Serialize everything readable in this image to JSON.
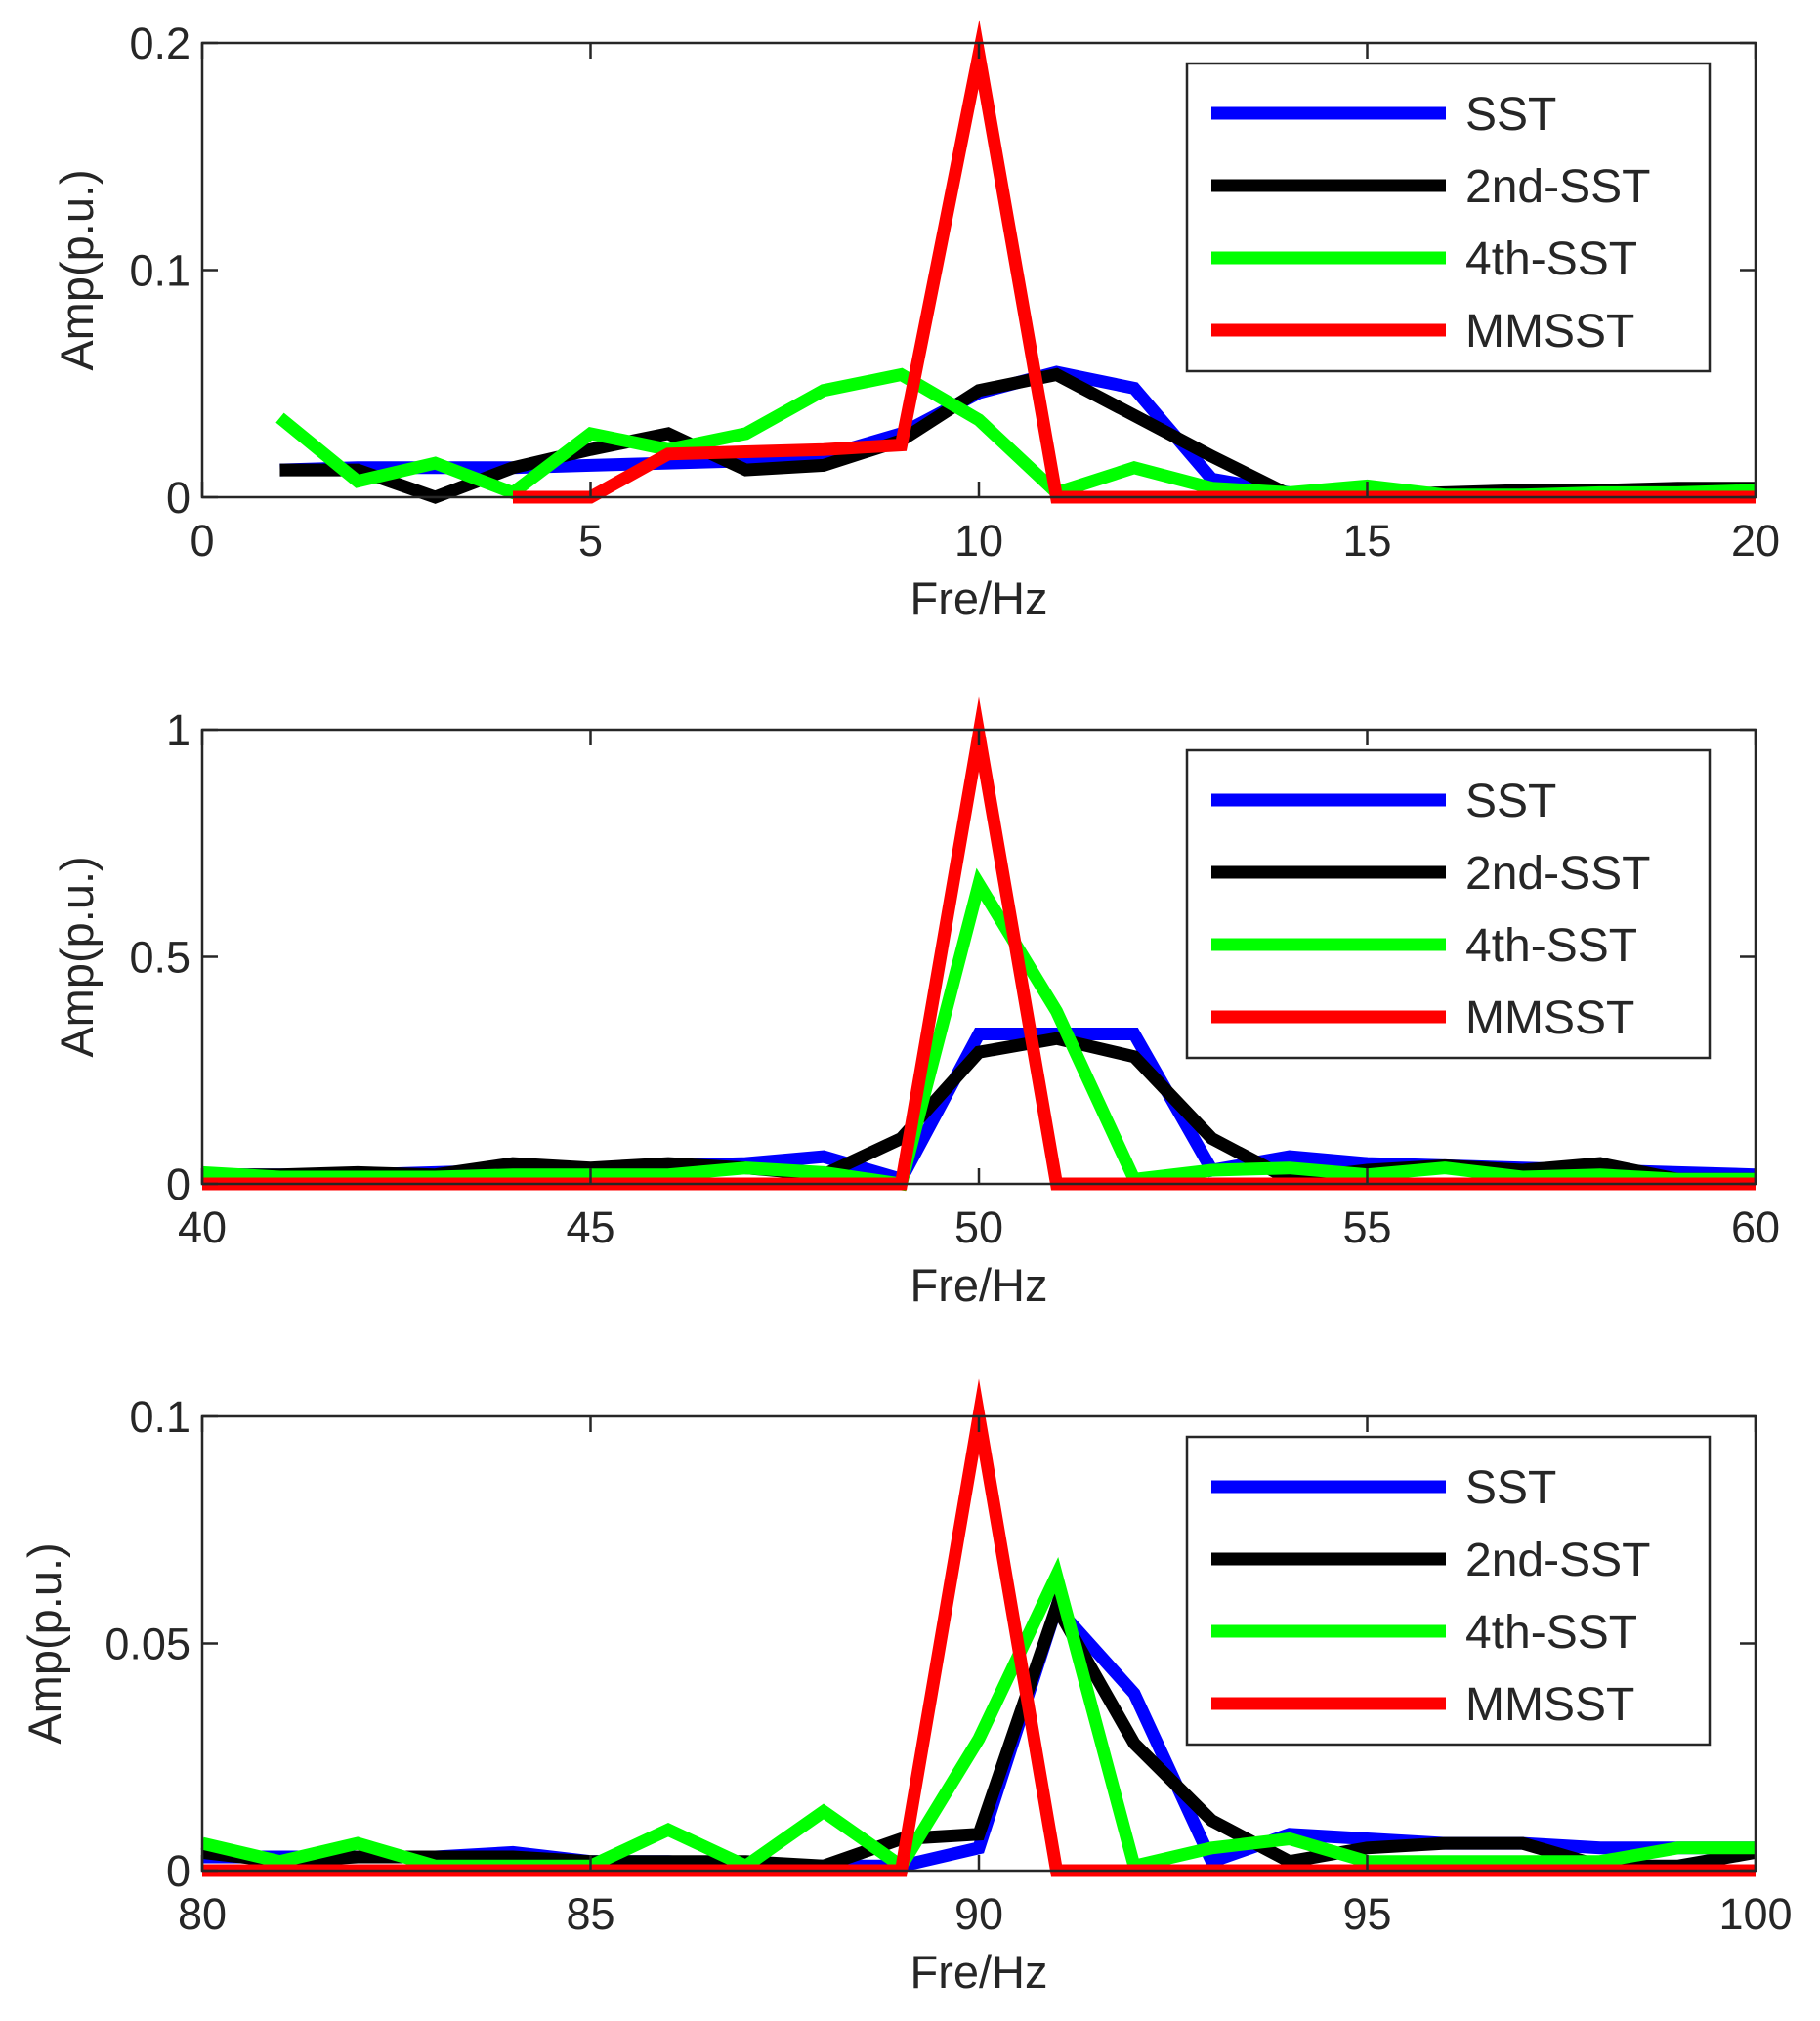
{
  "chart_data": [
    {
      "type": "line",
      "title": "",
      "xlabel": "Fre/Hz",
      "ylabel": "Amp(p.u.)",
      "xlim": [
        0,
        20
      ],
      "ylim": [
        0,
        0.2
      ],
      "xticks": [
        0,
        5,
        10,
        15,
        20
      ],
      "xtick_labels": [
        "0",
        "5",
        "10",
        "15",
        "20"
      ],
      "yticks": [
        0,
        0.1,
        0.2
      ],
      "ytick_labels": [
        "0",
        "0.1",
        "0.2"
      ],
      "legend_position": "top-right",
      "series": [
        {
          "name": "SST",
          "color": "#0000ff",
          "x": [
            1,
            2,
            3,
            4,
            5,
            6,
            7,
            8,
            9,
            10,
            11,
            12,
            13,
            14,
            15,
            16,
            17,
            18,
            19,
            20
          ],
          "y": [
            0.012,
            0.013,
            0.013,
            0.013,
            0.014,
            0.015,
            0.016,
            0.018,
            0.028,
            0.046,
            0.055,
            0.048,
            0.008,
            0.002,
            0.001,
            0.001,
            0.002,
            0.002,
            0.003,
            0.003
          ]
        },
        {
          "name": "2nd-SST",
          "color": "#000000",
          "x": [
            1,
            2,
            3,
            4,
            5,
            6,
            7,
            8,
            9,
            10,
            11,
            12,
            13,
            14,
            15,
            16,
            17,
            18,
            19,
            20
          ],
          "y": [
            0.012,
            0.012,
            0.0,
            0.013,
            0.021,
            0.028,
            0.012,
            0.014,
            0.025,
            0.047,
            0.054,
            0.036,
            0.018,
            0.001,
            0.001,
            0.002,
            0.003,
            0.003,
            0.004,
            0.004
          ]
        },
        {
          "name": "4th-SST",
          "color": "#00ff00",
          "x": [
            1,
            2,
            3,
            4,
            5,
            6,
            7,
            8,
            9,
            10,
            11,
            12,
            13,
            14,
            15,
            16,
            17,
            18,
            19,
            20
          ],
          "y": [
            0.035,
            0.007,
            0.015,
            0.002,
            0.028,
            0.021,
            0.028,
            0.047,
            0.054,
            0.034,
            0.002,
            0.013,
            0.004,
            0.002,
            0.005,
            0.001,
            0.001,
            0.002,
            0.002,
            0.003
          ]
        },
        {
          "name": "MMSST",
          "color": "#ff0000",
          "x": [
            4,
            5,
            6,
            7,
            8,
            9,
            10,
            11,
            12,
            13,
            14,
            15,
            16,
            17,
            18,
            19,
            20
          ],
          "y": [
            0.0,
            0.0,
            0.019,
            0.02,
            0.021,
            0.023,
            0.195,
            0.0,
            0.0,
            0.0,
            0.0,
            0.0,
            0.0,
            0.0,
            0.0,
            0.0,
            0.0
          ]
        }
      ]
    },
    {
      "type": "line",
      "title": "",
      "xlabel": "Fre/Hz",
      "ylabel": "Amp(p.u.)",
      "xlim": [
        40,
        60
      ],
      "ylim": [
        0,
        1
      ],
      "xticks": [
        40,
        45,
        50,
        55,
        60
      ],
      "xtick_labels": [
        "40",
        "45",
        "50",
        "55",
        "60"
      ],
      "yticks": [
        0,
        0.5,
        1
      ],
      "ytick_labels": [
        "0",
        "0.5",
        "1"
      ],
      "legend_position": "top-right",
      "series": [
        {
          "name": "SST",
          "color": "#0000ff",
          "x": [
            40,
            41,
            42,
            43,
            44,
            45,
            46,
            47,
            48,
            49,
            50,
            51,
            52,
            53,
            54,
            55,
            56,
            57,
            58,
            59,
            60
          ],
          "y": [
            0.02,
            0.02,
            0.02,
            0.025,
            0.03,
            0.03,
            0.04,
            0.045,
            0.06,
            0.01,
            0.33,
            0.33,
            0.33,
            0.03,
            0.06,
            0.045,
            0.04,
            0.035,
            0.03,
            0.025,
            0.02
          ]
        },
        {
          "name": "2nd-SST",
          "color": "#000000",
          "x": [
            40,
            41,
            42,
            43,
            44,
            45,
            46,
            47,
            48,
            49,
            50,
            51,
            52,
            53,
            54,
            55,
            56,
            57,
            58,
            59,
            60
          ],
          "y": [
            0.02,
            0.02,
            0.025,
            0.02,
            0.045,
            0.035,
            0.045,
            0.035,
            0.02,
            0.1,
            0.29,
            0.32,
            0.28,
            0.1,
            0.01,
            0.03,
            0.04,
            0.03,
            0.045,
            0.01,
            0.01
          ]
        },
        {
          "name": "4th-SST",
          "color": "#00ff00",
          "x": [
            40,
            41,
            42,
            43,
            44,
            45,
            46,
            47,
            48,
            49,
            50,
            51,
            52,
            53,
            54,
            55,
            56,
            57,
            58,
            59,
            60
          ],
          "y": [
            0.025,
            0.015,
            0.015,
            0.015,
            0.02,
            0.02,
            0.02,
            0.035,
            0.025,
            0.0,
            0.66,
            0.38,
            0.01,
            0.03,
            0.035,
            0.02,
            0.035,
            0.015,
            0.02,
            0.01,
            0.01
          ]
        },
        {
          "name": "MMSST",
          "color": "#ff0000",
          "x": [
            40,
            41,
            42,
            43,
            44,
            45,
            46,
            47,
            48,
            49,
            50,
            51,
            52,
            53,
            54,
            55,
            56,
            57,
            58,
            59,
            60
          ],
          "y": [
            0,
            0,
            0,
            0,
            0,
            0,
            0,
            0,
            0,
            0,
            0.99,
            0,
            0,
            0,
            0,
            0,
            0,
            0,
            0,
            0,
            0
          ]
        }
      ]
    },
    {
      "type": "line",
      "title": "",
      "xlabel": "Fre/Hz",
      "ylabel": "Amp(p.u.)",
      "xlim": [
        80,
        100
      ],
      "ylim": [
        0,
        0.1
      ],
      "xticks": [
        80,
        85,
        90,
        95,
        100
      ],
      "xtick_labels": [
        "80",
        "85",
        "90",
        "95",
        "100"
      ],
      "yticks": [
        0,
        0.05,
        0.1
      ],
      "ytick_labels": [
        "0",
        "0.05",
        "0.1"
      ],
      "legend_position": "top-right",
      "series": [
        {
          "name": "SST",
          "color": "#0000ff",
          "x": [
            80,
            81,
            82,
            83,
            84,
            85,
            86,
            87,
            88,
            89,
            90,
            91,
            92,
            93,
            94,
            95,
            96,
            97,
            98,
            99,
            100
          ],
          "y": [
            0.003,
            0.003,
            0.003,
            0.003,
            0.004,
            0.002,
            0.002,
            0.001,
            0.001,
            0.001,
            0.005,
            0.058,
            0.039,
            0.002,
            0.008,
            0.007,
            0.006,
            0.006,
            0.005,
            0.005,
            0.005
          ]
        },
        {
          "name": "2nd-SST",
          "color": "#000000",
          "x": [
            80,
            81,
            82,
            83,
            84,
            85,
            86,
            87,
            88,
            89,
            90,
            91,
            92,
            93,
            94,
            95,
            96,
            97,
            98,
            99,
            100
          ],
          "y": [
            0.004,
            0.002,
            0.003,
            0.003,
            0.003,
            0.002,
            0.002,
            0.002,
            0.001,
            0.007,
            0.008,
            0.058,
            0.028,
            0.011,
            0.002,
            0.005,
            0.006,
            0.006,
            0.001,
            0.001,
            0.004
          ]
        },
        {
          "name": "4th-SST",
          "color": "#00ff00",
          "x": [
            80,
            81,
            82,
            83,
            84,
            85,
            86,
            87,
            88,
            89,
            90,
            91,
            92,
            93,
            94,
            95,
            96,
            97,
            98,
            99,
            100
          ],
          "y": [
            0.006,
            0.002,
            0.006,
            0.001,
            0.001,
            0.001,
            0.009,
            0.001,
            0.013,
            0.001,
            0.029,
            0.065,
            0.001,
            0.005,
            0.007,
            0.002,
            0.002,
            0.002,
            0.002,
            0.005,
            0.005
          ]
        },
        {
          "name": "MMSST",
          "color": "#ff0000",
          "x": [
            80,
            81,
            82,
            83,
            84,
            85,
            86,
            87,
            88,
            89,
            90,
            91,
            92,
            93,
            94,
            95,
            96,
            97,
            98,
            99,
            100
          ],
          "y": [
            0,
            0,
            0,
            0,
            0,
            0,
            0,
            0,
            0,
            0,
            0.1,
            0,
            0,
            0,
            0,
            0,
            0,
            0,
            0,
            0,
            0
          ]
        }
      ]
    }
  ]
}
